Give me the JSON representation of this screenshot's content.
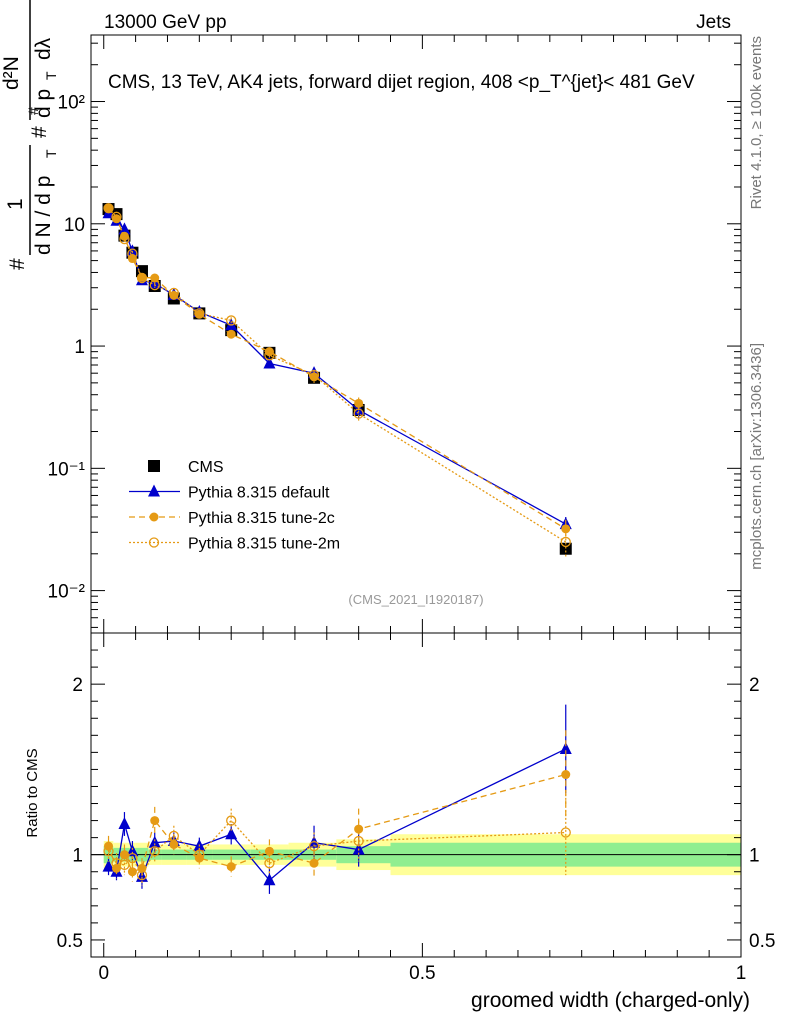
{
  "header": {
    "left": "13000 GeV pp",
    "right": "Jets"
  },
  "side_texts": {
    "rivet": "Rivet 4.1.0, ≥ 100k events",
    "mcplots": "mcplots.cern.ch [arXiv:1306.3436]"
  },
  "chart_data": [
    {
      "type": "scatter",
      "panel": "main",
      "title": "CMS, 13 TeV, AK4 jets, forward dijet region, 408 <p_T^{jet}< 481 GeV",
      "ylabel": "1/dN/dp_T · d²N/dp_T dλ",
      "ylabel_parts": {
        "one": "1",
        "dn": "d N / d p",
        "t": "T",
        "d2n": "d²N",
        "dp": "d p",
        "dl": "dλ",
        "hash": "#"
      },
      "yscale": "log",
      "ylim": [
        0.0045,
        350
      ],
      "xlim": [
        -0.02,
        1.0
      ],
      "ytick_labels": [
        "10⁻²",
        "10⁻¹",
        "1",
        "10",
        "10²"
      ],
      "ytick_values": [
        0.01,
        0.1,
        1,
        10,
        100
      ],
      "watermark": "(CMS_2021_I1920187)",
      "legend_position": "lower-left",
      "series": [
        {
          "name": "CMS",
          "color": "#000000",
          "marker": "square",
          "x": [
            0.0075,
            0.02,
            0.0325,
            0.045,
            0.06,
            0.08,
            0.11,
            0.15,
            0.2,
            0.26,
            0.33,
            0.4,
            0.725
          ],
          "values": [
            13.2,
            12.0,
            8.0,
            5.8,
            4.1,
            3.1,
            2.45,
            1.85,
            1.35,
            0.88,
            0.55,
            0.3,
            0.022
          ]
        },
        {
          "name": "Pythia 8.315 default",
          "color": "#0000cc",
          "marker": "triangle",
          "line": "solid",
          "x": [
            0.0075,
            0.02,
            0.0325,
            0.045,
            0.06,
            0.08,
            0.11,
            0.15,
            0.2,
            0.26,
            0.33,
            0.4,
            0.725
          ],
          "values": [
            12.2,
            10.6,
            9.0,
            5.95,
            3.45,
            3.25,
            2.62,
            1.9,
            1.48,
            0.72,
            0.6,
            0.3,
            0.035
          ],
          "errors": [
            0.5,
            0.5,
            0.5,
            0.3,
            0.2,
            0.15,
            0.12,
            0.1,
            0.1,
            0.05,
            0.06,
            0.04,
            0.005
          ]
        },
        {
          "name": "Pythia 8.315 tune-2c",
          "color": "#e59a14",
          "marker": "filled-circle",
          "line": "dashed",
          "x": [
            0.0075,
            0.02,
            0.0325,
            0.045,
            0.06,
            0.08,
            0.11,
            0.15,
            0.2,
            0.26,
            0.33,
            0.4,
            0.725
          ],
          "values": [
            13.5,
            11.0,
            7.9,
            5.2,
            3.65,
            3.6,
            2.6,
            1.82,
            1.25,
            0.9,
            0.56,
            0.34,
            0.032
          ],
          "errors": [
            0.6,
            0.5,
            0.4,
            0.3,
            0.2,
            0.2,
            0.15,
            0.12,
            0.1,
            0.06,
            0.06,
            0.04,
            0.006
          ]
        },
        {
          "name": "Pythia 8.315 tune-2m",
          "color": "#e59a14",
          "marker": "open-circle",
          "line": "dotted",
          "x": [
            0.0075,
            0.02,
            0.0325,
            0.045,
            0.06,
            0.08,
            0.11,
            0.15,
            0.2,
            0.26,
            0.33,
            0.4,
            0.725
          ],
          "values": [
            13.4,
            11.4,
            7.5,
            5.7,
            3.6,
            3.15,
            2.72,
            1.85,
            1.62,
            0.84,
            0.58,
            0.28,
            0.025
          ],
          "errors": [
            0.6,
            0.5,
            0.4,
            0.3,
            0.2,
            0.15,
            0.13,
            0.1,
            0.1,
            0.06,
            0.06,
            0.04,
            0.006
          ]
        }
      ]
    },
    {
      "type": "scatter",
      "panel": "ratio",
      "ylabel": "Ratio to CMS",
      "xlabel": "groomed width (charged-only)",
      "ylim": [
        0.4,
        2.3
      ],
      "xlim": [
        -0.02,
        1.0
      ],
      "xtick_labels": [
        "0",
        "0.5",
        "1"
      ],
      "xtick_values": [
        0,
        0.5,
        1
      ],
      "ytick_labels": [
        "0.5",
        "1",
        "2"
      ],
      "ytick_values": [
        0.5,
        1,
        2
      ],
      "bands": {
        "x_edges": [
          0.0,
          0.015,
          0.025,
          0.04,
          0.05,
          0.07,
          0.09,
          0.13,
          0.17,
          0.23,
          0.29,
          0.365,
          0.45,
          1.0
        ],
        "green": [
          0.05,
          0.04,
          0.04,
          0.04,
          0.04,
          0.03,
          0.03,
          0.03,
          0.03,
          0.03,
          0.03,
          0.05,
          0.07
        ],
        "yellow": [
          0.08,
          0.07,
          0.07,
          0.07,
          0.07,
          0.06,
          0.06,
          0.06,
          0.06,
          0.06,
          0.07,
          0.09,
          0.12
        ],
        "green_color": "#90ee90",
        "yellow_color": "#ffff99"
      },
      "series": [
        {
          "name": "Pythia 8.315 default",
          "color": "#0000cc",
          "values": [
            0.93,
            0.9,
            1.18,
            1.02,
            0.87,
            1.07,
            1.08,
            1.05,
            1.12,
            0.85,
            1.07,
            1.03,
            1.62
          ],
          "errors": [
            0.05,
            0.05,
            0.07,
            0.06,
            0.07,
            0.06,
            0.05,
            0.05,
            0.06,
            0.08,
            0.1,
            0.1,
            0.26
          ]
        },
        {
          "name": "Pythia 8.315 tune-2c",
          "color": "#e59a14",
          "values": [
            1.05,
            0.92,
            1.0,
            0.9,
            0.92,
            1.2,
            1.06,
            0.98,
            0.93,
            1.02,
            0.95,
            1.15,
            1.47
          ],
          "errors": [
            0.06,
            0.06,
            0.06,
            0.06,
            0.06,
            0.08,
            0.06,
            0.06,
            0.06,
            0.07,
            0.08,
            0.12,
            0.26
          ]
        },
        {
          "name": "Pythia 8.315 tune-2m",
          "color": "#e59a14",
          "values": [
            1.02,
            0.95,
            0.94,
            0.98,
            0.88,
            1.02,
            1.11,
            1.0,
            1.2,
            0.95,
            1.05,
            1.08,
            1.13
          ],
          "errors": [
            0.06,
            0.06,
            0.06,
            0.06,
            0.06,
            0.07,
            0.06,
            0.06,
            0.07,
            0.07,
            0.08,
            0.12,
            0.25
          ]
        }
      ]
    }
  ]
}
